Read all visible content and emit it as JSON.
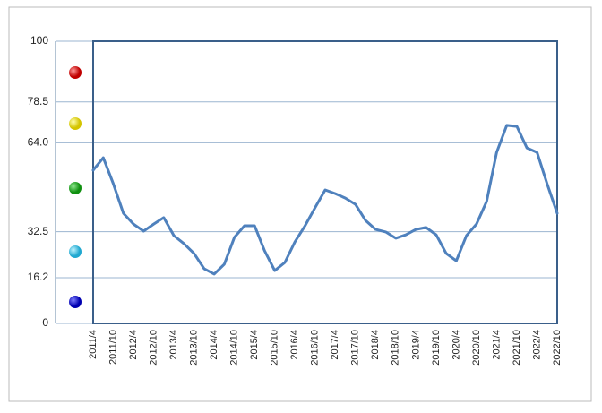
{
  "chart_data": {
    "type": "line",
    "categories": [
      "2011/4",
      null,
      "2011/10",
      null,
      "2012/4",
      null,
      "2012/10",
      null,
      "2013/4",
      null,
      "2013/10",
      null,
      "2014/4",
      null,
      "2014/10",
      null,
      "2015/4",
      null,
      "2015/10",
      null,
      "2016/4",
      null,
      "2016/10",
      null,
      "2017/4",
      null,
      "2017/10",
      null,
      "2018/4",
      null,
      "2018/10",
      null,
      "2019/4",
      null,
      "2019/10",
      null,
      "2020/4",
      null,
      "2020/10",
      null,
      "2021/4",
      null,
      "2021/10",
      null,
      "2022/4",
      null,
      "2022/10"
    ],
    "series": [
      {
        "color": "#4f81bd",
        "values": [
          54.3,
          58.7,
          49.5,
          39,
          35.2,
          32.7,
          35.2,
          37.5,
          31.1,
          28.3,
          24.8,
          19.4,
          17.5,
          21,
          30.5,
          34.6,
          34.6,
          25.7,
          18.7,
          21.6,
          28.9,
          34.6,
          41,
          47.3,
          46,
          44.4,
          42.2,
          36.5,
          33.3,
          32.4,
          30.2,
          31.4,
          33.3,
          34,
          31.4,
          24.8,
          22.2,
          31.1,
          35.2,
          43.2,
          60.6,
          70.2,
          69.8,
          62.2,
          60.6,
          49.5,
          39
        ]
      }
    ],
    "ylim": [
      0,
      100
    ],
    "yticks": [
      0,
      16.2,
      32.5,
      {
        "value": 64,
        "label": "64.0"
      },
      78.5,
      100
    ],
    "grid": true
  }
}
